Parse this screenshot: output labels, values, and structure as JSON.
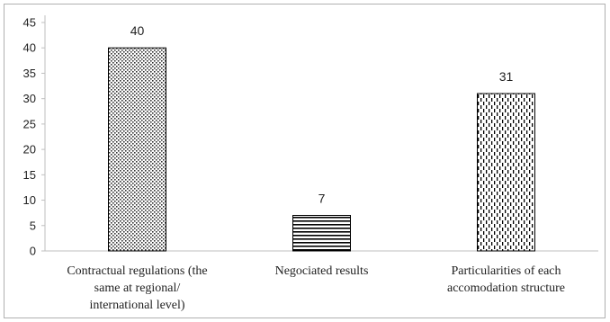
{
  "chart_data": {
    "type": "bar",
    "categories": [
      [
        "Contractual regulations (the",
        "same at regional/",
        "international level)"
      ],
      [
        "Negociated results"
      ],
      [
        "Particularities of each",
        "accomodation structure"
      ]
    ],
    "values": [
      40,
      7,
      31
    ],
    "data_labels": [
      "40",
      "7",
      "31"
    ],
    "patterns": [
      "dots",
      "horizontal-lines",
      "vertical-dashes"
    ],
    "ylim": [
      0,
      45
    ],
    "yticks": [
      0,
      5,
      10,
      15,
      20,
      25,
      30,
      35,
      40,
      45
    ],
    "grid": false,
    "legend": "none",
    "colors": {
      "bar_stroke": "#000000",
      "axis": "#bfbfbf",
      "text": "#222222"
    }
  }
}
